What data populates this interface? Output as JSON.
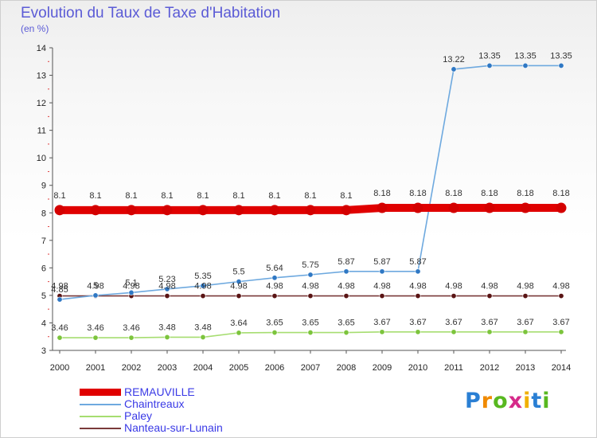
{
  "header": {
    "title": "Evolution du Taux de Taxe d'Habitation",
    "subtitle": "(en %)"
  },
  "logo": {
    "text": "Proxiti",
    "letter_colors": [
      "#2a7fd4",
      "#f08a00",
      "#58b820",
      "#d62a8a",
      "#f0b000",
      "#2a7fd4",
      "#58b820"
    ]
  },
  "chart_data": {
    "type": "line",
    "title": "Evolution du Taux de Taxe d'Habitation",
    "subtitle": "(en %)",
    "xlabel": "",
    "ylabel": "",
    "x": [
      "2000",
      "2001",
      "2002",
      "2003",
      "2004",
      "2005",
      "2006",
      "2007",
      "2008",
      "2009",
      "2010",
      "2011",
      "2012",
      "2013",
      "2014"
    ],
    "ylim": [
      3,
      14
    ],
    "yticks": [
      3,
      4,
      5,
      6,
      7,
      8,
      9,
      10,
      11,
      12,
      13,
      14
    ],
    "grid": false,
    "legend_position": "bottom-left",
    "series": [
      {
        "name": "REMAUVILLE",
        "color": "#e00000",
        "marker_color": "#d40000",
        "values": [
          8.1,
          8.1,
          8.1,
          8.1,
          8.1,
          8.1,
          8.1,
          8.1,
          8.1,
          8.18,
          8.18,
          8.18,
          8.18,
          8.18,
          8.18
        ],
        "labels": [
          "8.1",
          "8.1",
          "8.1",
          "8.1",
          "8.1",
          "8.1",
          "8.1",
          "8.1",
          "8.1",
          "8.18",
          "8.18",
          "8.18",
          "8.18",
          "8.18",
          "8.18"
        ]
      },
      {
        "name": "Chaintreaux",
        "color": "#6ea9df",
        "marker_color": "#2f78c4",
        "values": [
          4.85,
          5,
          5.1,
          5.23,
          5.35,
          5.5,
          5.64,
          5.75,
          5.87,
          5.87,
          5.87,
          13.22,
          13.35,
          13.35,
          13.35
        ],
        "labels": [
          "4.85",
          "5",
          "5.1",
          "5.23",
          "5.35",
          "5.5",
          "5.64",
          "5.75",
          "5.87",
          "5.87",
          "5.87",
          "13.22",
          "13.35",
          "13.35",
          "13.35"
        ]
      },
      {
        "name": "Paley",
        "color": "#a6dd70",
        "marker_color": "#7cc43c",
        "values": [
          3.46,
          3.46,
          3.46,
          3.48,
          3.48,
          3.64,
          3.65,
          3.65,
          3.65,
          3.67,
          3.67,
          3.67,
          3.67,
          3.67,
          3.67
        ],
        "labels": [
          "3.46",
          "3.46",
          "3.46",
          "3.48",
          "3.48",
          "3.64",
          "3.65",
          "3.65",
          "3.65",
          "3.67",
          "3.67",
          "3.67",
          "3.67",
          "3.67",
          "3.67"
        ]
      },
      {
        "name": "Nanteau-sur-Lunain",
        "color": "#7a3a3a",
        "marker_color": "#5a1414",
        "values": [
          4.98,
          4.98,
          4.98,
          4.98,
          4.98,
          4.98,
          4.98,
          4.98,
          4.98,
          4.98,
          4.98,
          4.98,
          4.98,
          4.98,
          4.98
        ],
        "labels": [
          "4.98",
          "4.98",
          "4.98",
          "4.98",
          "4.98",
          "4.98",
          "4.98",
          "4.98",
          "4.98",
          "4.98",
          "4.98",
          "4.98",
          "4.98",
          "4.98",
          "4.98"
        ]
      }
    ]
  }
}
